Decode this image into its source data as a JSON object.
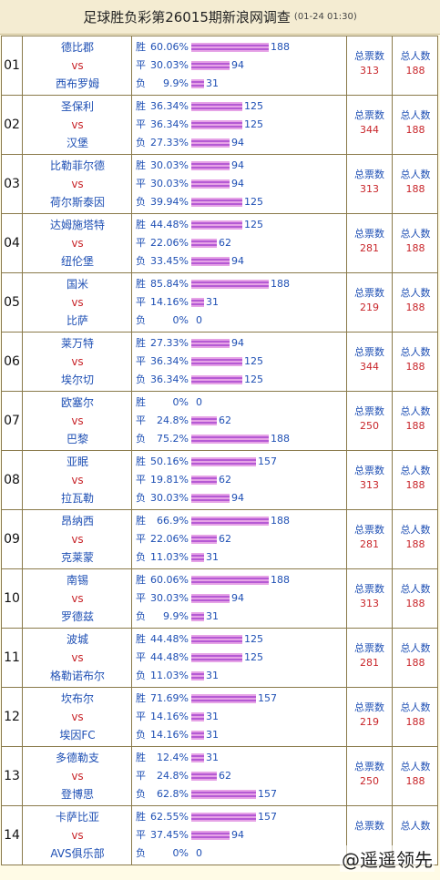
{
  "title": "足球胜负彩第26015期新浪网调查",
  "subtitle": "(01-24 01:30)",
  "vs_label": "vs",
  "win_label": "胜",
  "draw_label": "平",
  "loss_label": "负",
  "total_label": "总票数",
  "people_label": "总人数",
  "watermark": "@遥遥领先",
  "matches": [
    {
      "no": "01",
      "home": "德比郡",
      "away": "西布罗姆",
      "w_pct": "60.06%",
      "w": 188,
      "d_pct": "30.03%",
      "d": 94,
      "l_pct": "9.9%",
      "l": 31,
      "total": "313",
      "people": "188"
    },
    {
      "no": "02",
      "home": "圣保利",
      "away": "汉堡",
      "w_pct": "36.34%",
      "w": 125,
      "d_pct": "36.34%",
      "d": 125,
      "l_pct": "27.33%",
      "l": 94,
      "total": "344",
      "people": "188"
    },
    {
      "no": "03",
      "home": "比勒菲尔德",
      "away": "荷尔斯泰因",
      "w_pct": "30.03%",
      "w": 94,
      "d_pct": "30.03%",
      "d": 94,
      "l_pct": "39.94%",
      "l": 125,
      "total": "313",
      "people": "188"
    },
    {
      "no": "04",
      "home": "达姆施塔特",
      "away": "纽伦堡",
      "w_pct": "44.48%",
      "w": 125,
      "d_pct": "22.06%",
      "d": 62,
      "l_pct": "33.45%",
      "l": 94,
      "total": "281",
      "people": "188"
    },
    {
      "no": "05",
      "home": "国米",
      "away": "比萨",
      "w_pct": "85.84%",
      "w": 188,
      "d_pct": "14.16%",
      "d": 31,
      "l_pct": "0%",
      "l": 0,
      "total": "219",
      "people": "188"
    },
    {
      "no": "06",
      "home": "莱万特",
      "away": "埃尔切",
      "w_pct": "27.33%",
      "w": 94,
      "d_pct": "36.34%",
      "d": 125,
      "l_pct": "36.34%",
      "l": 125,
      "total": "344",
      "people": "188"
    },
    {
      "no": "07",
      "home": "欧塞尔",
      "away": "巴黎",
      "w_pct": "0%",
      "w": 0,
      "d_pct": "24.8%",
      "d": 62,
      "l_pct": "75.2%",
      "l": 188,
      "total": "250",
      "people": "188"
    },
    {
      "no": "08",
      "home": "亚眠",
      "away": "拉瓦勒",
      "w_pct": "50.16%",
      "w": 157,
      "d_pct": "19.81%",
      "d": 62,
      "l_pct": "30.03%",
      "l": 94,
      "total": "313",
      "people": "188"
    },
    {
      "no": "09",
      "home": "昂纳西",
      "away": "克莱蒙",
      "w_pct": "66.9%",
      "w": 188,
      "d_pct": "22.06%",
      "d": 62,
      "l_pct": "11.03%",
      "l": 31,
      "total": "281",
      "people": "188"
    },
    {
      "no": "10",
      "home": "南锡",
      "away": "罗德兹",
      "w_pct": "60.06%",
      "w": 188,
      "d_pct": "30.03%",
      "d": 94,
      "l_pct": "9.9%",
      "l": 31,
      "total": "313",
      "people": "188"
    },
    {
      "no": "11",
      "home": "波城",
      "away": "格勒诺布尔",
      "w_pct": "44.48%",
      "w": 125,
      "d_pct": "44.48%",
      "d": 125,
      "l_pct": "11.03%",
      "l": 31,
      "total": "281",
      "people": "188"
    },
    {
      "no": "12",
      "home": "坎布尔",
      "away": "埃因FC",
      "w_pct": "71.69%",
      "w": 157,
      "d_pct": "14.16%",
      "d": 31,
      "l_pct": "14.16%",
      "l": 31,
      "total": "219",
      "people": "188"
    },
    {
      "no": "13",
      "home": "多德勒支",
      "away": "登博思",
      "w_pct": "12.4%",
      "w": 31,
      "d_pct": "24.8%",
      "d": 62,
      "l_pct": "62.8%",
      "l": 157,
      "total": "250",
      "people": "188"
    },
    {
      "no": "14",
      "home": "卡萨比亚",
      "away": "AVS俱乐部",
      "w_pct": "62.55%",
      "w": 157,
      "d_pct": "37.45%",
      "d": 94,
      "l_pct": "0%",
      "l": 0,
      "total": "",
      "people": ""
    }
  ]
}
